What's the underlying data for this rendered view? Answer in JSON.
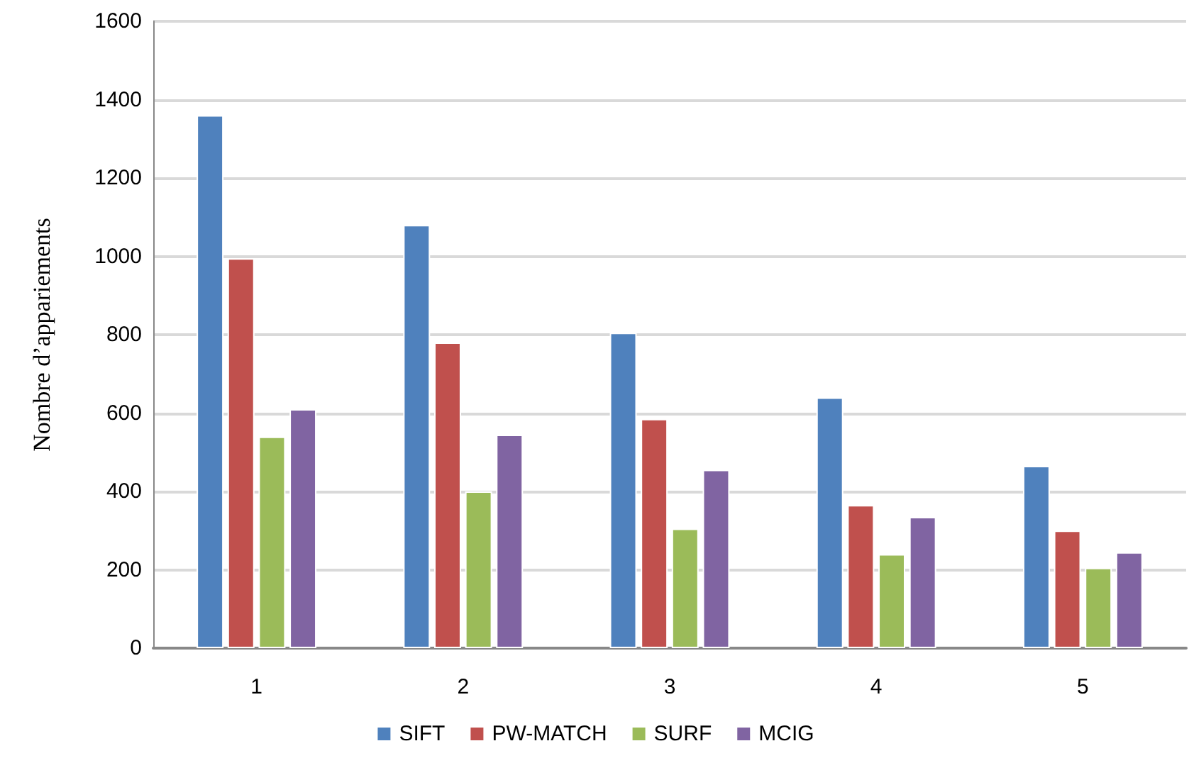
{
  "chart_data": {
    "type": "bar",
    "ylabel": "Nombre d’appariements",
    "categories": [
      "1",
      "2",
      "3",
      "4",
      "5"
    ],
    "series": [
      {
        "name": "SIFT",
        "color": "#4f81bd",
        "values": [
          1360,
          1080,
          805,
          640,
          465
        ]
      },
      {
        "name": "PW-MATCH",
        "color": "#c0504d",
        "values": [
          995,
          780,
          585,
          365,
          300
        ]
      },
      {
        "name": "SURF",
        "color": "#9bbb59",
        "values": [
          540,
          400,
          305,
          240,
          205
        ]
      },
      {
        "name": "MCIG",
        "color": "#8064a2",
        "values": [
          610,
          545,
          455,
          335,
          245
        ]
      }
    ],
    "ylim": [
      0,
      1600
    ],
    "yticks": [
      0,
      200,
      400,
      600,
      800,
      1000,
      1200,
      1400,
      1600
    ],
    "grid": "y",
    "legend": "bottom"
  }
}
